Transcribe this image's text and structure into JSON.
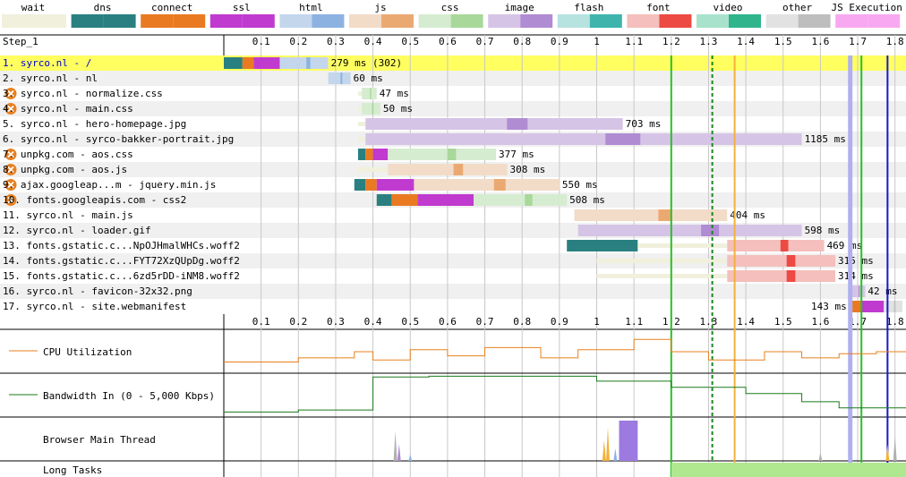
{
  "legend": [
    {
      "label": "wait",
      "light": "#f0f0dc",
      "dark": "#f0f0dc"
    },
    {
      "label": "dns",
      "light": "#2a8080",
      "dark": "#2a8080"
    },
    {
      "label": "connect",
      "light": "#ea7a22",
      "dark": "#ea7a22"
    },
    {
      "label": "ssl",
      "light": "#c03ad0",
      "dark": "#c03ad0"
    },
    {
      "label": "html",
      "light": "#c4d6ec",
      "dark": "#8cb2e2"
    },
    {
      "label": "js",
      "light": "#f2dcc8",
      "dark": "#eba972"
    },
    {
      "label": "css",
      "light": "#d6ecd0",
      "dark": "#a8d89a"
    },
    {
      "label": "image",
      "light": "#d6c4e6",
      "dark": "#b08cd2"
    },
    {
      "label": "flash",
      "light": "#b6e2e0",
      "dark": "#3eb4ac"
    },
    {
      "label": "font",
      "light": "#f4bfbc",
      "dark": "#ec4a42"
    },
    {
      "label": "video",
      "light": "#a8e2cc",
      "dark": "#2fb48c"
    },
    {
      "label": "other",
      "light": "#e2e2e2",
      "dark": "#bebebe"
    },
    {
      "label": "JS Execution",
      "light": "#f8a8f0",
      "dark": "#f8a8f0"
    }
  ],
  "chart_data": {
    "type": "waterfall",
    "title": "Step_1",
    "x_ticks": [
      0.1,
      0.2,
      0.3,
      0.4,
      0.5,
      0.6,
      0.7,
      0.8,
      0.9,
      1.0,
      1.1,
      1.2,
      1.3,
      1.4,
      1.5,
      1.6,
      1.7,
      1.8
    ],
    "xlim_seconds": [
      0,
      1.83
    ],
    "vertical_markers": [
      {
        "t": 1.2,
        "color": "#27c027",
        "style": "solid"
      },
      {
        "t": 1.31,
        "color": "#18881e",
        "style": "dashed"
      },
      {
        "t": 1.37,
        "color": "#f2b13a",
        "style": "solid"
      },
      {
        "t": 1.68,
        "color": "#b0b0f0",
        "style": "wide"
      },
      {
        "t": 1.71,
        "color": "#27c027",
        "style": "solid"
      },
      {
        "t": 1.78,
        "color": "#1818c8",
        "style": "solid"
      }
    ],
    "requests": [
      {
        "label": "1. syrco.nl - /",
        "time": "279 ms (302)",
        "type": "html",
        "warn": false,
        "hl": true,
        "segs": [
          [
            "dns",
            0,
            0.05
          ],
          [
            "connect",
            0.05,
            0.08
          ],
          [
            "ssl",
            0.08,
            0.15
          ],
          [
            "html",
            0.15,
            0.28
          ]
        ]
      },
      {
        "label": "2. syrco.nl - nl",
        "time": "60 ms",
        "type": "html",
        "warn": false,
        "segs": [
          [
            "html",
            0.28,
            0.34
          ]
        ]
      },
      {
        "label": "3. syrco.nl - normalize.css",
        "time": "47 ms",
        "type": "css",
        "warn": true,
        "segs": [
          [
            "wait",
            0.36,
            0.37
          ],
          [
            "css",
            0.37,
            0.41
          ]
        ]
      },
      {
        "label": "4. syrco.nl - main.css",
        "time": "50 ms",
        "type": "css",
        "warn": true,
        "segs": [
          [
            "wait",
            0.36,
            0.37
          ],
          [
            "css",
            0.37,
            0.42
          ]
        ]
      },
      {
        "label": "5. syrco.nl - hero-homepage.jpg",
        "time": "703 ms",
        "type": "image",
        "warn": false,
        "segs": [
          [
            "wait",
            0.36,
            0.38
          ],
          [
            "image",
            0.38,
            1.07
          ]
        ]
      },
      {
        "label": "6. syrco.nl - syrco-bakker-portrait.jpg",
        "time": "1185 ms",
        "type": "image",
        "warn": false,
        "segs": [
          [
            "wait",
            0.36,
            0.38
          ],
          [
            "image",
            0.38,
            1.55
          ]
        ]
      },
      {
        "label": "7. unpkg.com - aos.css",
        "time": "377 ms",
        "type": "css",
        "warn": true,
        "segs": [
          [
            "dns",
            0.36,
            0.38
          ],
          [
            "connect",
            0.38,
            0.4
          ],
          [
            "ssl",
            0.4,
            0.44
          ],
          [
            "css",
            0.44,
            0.73
          ]
        ]
      },
      {
        "label": "8. unpkg.com - aos.js",
        "time": "308 ms",
        "type": "js",
        "warn": true,
        "segs": [
          [
            "wait",
            0.36,
            0.44
          ],
          [
            "js",
            0.44,
            0.76
          ]
        ]
      },
      {
        "label": "9. ajax.googleap...m - jquery.min.js",
        "time": "550 ms",
        "type": "js",
        "warn": true,
        "segs": [
          [
            "dns",
            0.35,
            0.38
          ],
          [
            "connect",
            0.38,
            0.41
          ],
          [
            "ssl",
            0.41,
            0.51
          ],
          [
            "js",
            0.51,
            0.9
          ]
        ]
      },
      {
        "label": "10. fonts.googleapis.com - css2",
        "time": "508 ms",
        "type": "css",
        "warn": true,
        "segs": [
          [
            "dns",
            0.41,
            0.45
          ],
          [
            "connect",
            0.45,
            0.52
          ],
          [
            "ssl",
            0.52,
            0.67
          ],
          [
            "css",
            0.67,
            0.92
          ]
        ]
      },
      {
        "label": "11. syrco.nl - main.js",
        "time": "404 ms",
        "type": "js",
        "warn": false,
        "segs": [
          [
            "js",
            0.94,
            1.35
          ]
        ]
      },
      {
        "label": "12. syrco.nl - loader.gif",
        "time": "598 ms",
        "type": "image",
        "warn": false,
        "segs": [
          [
            "image",
            0.95,
            1.55
          ]
        ]
      },
      {
        "label": "13. fonts.gstatic.c...NpOJHmalWHCs.woff2",
        "time": "469 ms",
        "type": "font",
        "warn": false,
        "segs": [
          [
            "dns",
            0.92,
            1.11
          ],
          [
            "wait",
            1.11,
            1.35
          ],
          [
            "font",
            1.35,
            1.61
          ]
        ]
      },
      {
        "label": "14. fonts.gstatic.c...FYT72XzQUpDg.woff2",
        "time": "315 ms",
        "type": "font",
        "warn": false,
        "segs": [
          [
            "wait",
            1.0,
            1.35
          ],
          [
            "font",
            1.35,
            1.64
          ]
        ]
      },
      {
        "label": "15. fonts.gstatic.c...6zd5rDD-iNM8.woff2",
        "time": "314 ms",
        "type": "font",
        "warn": false,
        "segs": [
          [
            "wait",
            1.0,
            1.35
          ],
          [
            "font",
            1.35,
            1.64
          ]
        ]
      },
      {
        "label": "16. syrco.nl - favicon-32x32.png",
        "time": "42 ms",
        "type": "image",
        "warn": false,
        "segs": [
          [
            "image",
            1.68,
            1.72
          ]
        ]
      },
      {
        "label": "17. syrco.nl - site.webmanifest",
        "time": "143 ms",
        "type": "other",
        "warn": false,
        "time_left": true,
        "segs": [
          [
            "connect",
            1.68,
            1.71
          ],
          [
            "ssl",
            1.71,
            1.77
          ],
          [
            "other",
            1.77,
            1.82
          ]
        ]
      }
    ],
    "cpu": [
      [
        0,
        0.25
      ],
      [
        0.2,
        0.25
      ],
      [
        0.2,
        0.35
      ],
      [
        0.35,
        0.35
      ],
      [
        0.35,
        0.5
      ],
      [
        0.4,
        0.5
      ],
      [
        0.4,
        0.3
      ],
      [
        0.5,
        0.3
      ],
      [
        0.5,
        0.55
      ],
      [
        0.6,
        0.55
      ],
      [
        0.6,
        0.4
      ],
      [
        0.7,
        0.4
      ],
      [
        0.7,
        0.6
      ],
      [
        0.85,
        0.6
      ],
      [
        0.85,
        0.35
      ],
      [
        0.95,
        0.35
      ],
      [
        0.95,
        0.55
      ],
      [
        1.1,
        0.55
      ],
      [
        1.1,
        0.8
      ],
      [
        1.2,
        0.8
      ],
      [
        1.2,
        0.5
      ],
      [
        1.3,
        0.5
      ],
      [
        1.3,
        0.3
      ],
      [
        1.45,
        0.3
      ],
      [
        1.45,
        0.5
      ],
      [
        1.55,
        0.5
      ],
      [
        1.55,
        0.35
      ],
      [
        1.65,
        0.35
      ],
      [
        1.65,
        0.45
      ],
      [
        1.75,
        0.45
      ],
      [
        1.75,
        0.5
      ],
      [
        1.83,
        0.5
      ]
    ],
    "bandwidth": [
      [
        0,
        0.1
      ],
      [
        0.2,
        0.1
      ],
      [
        0.2,
        0.15
      ],
      [
        0.4,
        0.15
      ],
      [
        0.4,
        0.95
      ],
      [
        0.55,
        0.95
      ],
      [
        0.55,
        0.97
      ],
      [
        1.0,
        0.97
      ],
      [
        1.0,
        0.85
      ],
      [
        1.2,
        0.85
      ],
      [
        1.2,
        0.7
      ],
      [
        1.4,
        0.7
      ],
      [
        1.4,
        0.55
      ],
      [
        1.55,
        0.55
      ],
      [
        1.55,
        0.35
      ],
      [
        1.65,
        0.35
      ],
      [
        1.65,
        0.2
      ],
      [
        1.83,
        0.2
      ]
    ],
    "main_thread_spikes": [
      [
        0.46,
        0.7,
        "#b0b0b0"
      ],
      [
        0.47,
        0.4,
        "#b08cd2"
      ],
      [
        0.5,
        0.15,
        "#8cb2e2"
      ],
      [
        1.02,
        0.5,
        "#f2b13a"
      ],
      [
        1.03,
        0.8,
        "#f2b13a"
      ],
      [
        1.05,
        0.3,
        "#8cb2e2"
      ],
      [
        1.1,
        0.2,
        "#b0b0b0"
      ],
      [
        1.6,
        0.2,
        "#b0b0b0"
      ],
      [
        1.78,
        0.4,
        "#f2b13a"
      ],
      [
        1.8,
        0.6,
        "#b0b0b0"
      ]
    ],
    "main_thread_block": [
      1.06,
      1.11,
      "#9c7ae0"
    ],
    "long_tasks": [
      [
        1.2,
        1.83
      ]
    ]
  },
  "panels": {
    "cpu_label": "CPU Utilization",
    "bandwidth_label": "Bandwidth In (0 - 5,000 Kbps)",
    "main_thread_label": "Browser Main Thread",
    "long_tasks_label": "Long Tasks"
  }
}
